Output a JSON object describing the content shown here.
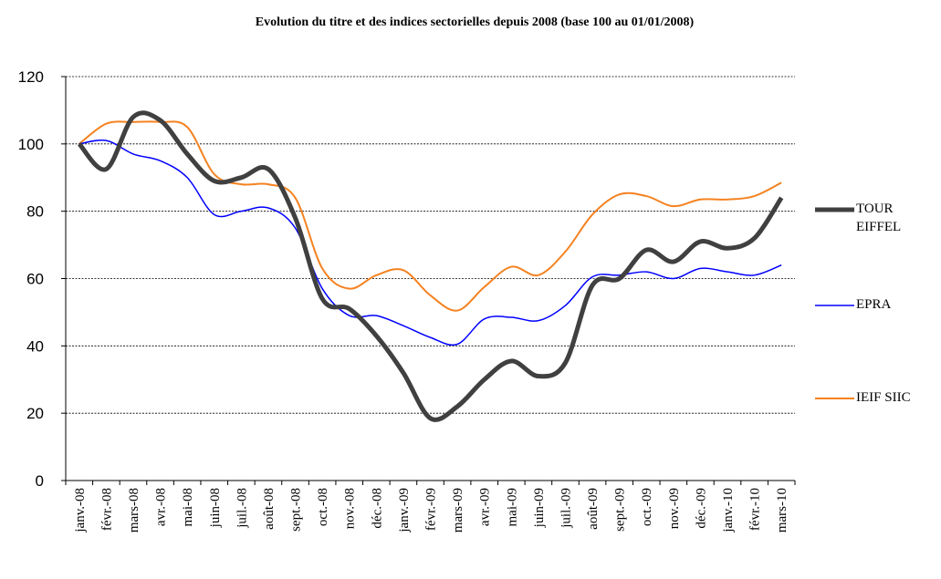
{
  "chart_data": {
    "type": "line",
    "title": "Evolution du titre et des indices sectorielles depuis 2008 (base 100 au 01/01/2008)",
    "categories": [
      "janv.-08",
      "févr.-08",
      "mars-08",
      "avr.-08",
      "mai-08",
      "juin-08",
      "juil.-08",
      "août-08",
      "sept.-08",
      "oct.-08",
      "nov.-08",
      "déc.-08",
      "janv.-09",
      "févr.-09",
      "mars-09",
      "avr.-09",
      "mai-09",
      "juin-09",
      "juil.-09",
      "août-09",
      "sept.-09",
      "oct.-09",
      "nov.-09",
      "déc.-09",
      "janv.-10",
      "févr.-10",
      "mars-10"
    ],
    "series": [
      {
        "name": "TOUR EIFFEL",
        "color": "#404040",
        "values": [
          100,
          92.5,
          108,
          107,
          97,
          89,
          90,
          92.5,
          78,
          54,
          51,
          43,
          32,
          18.5,
          22,
          30,
          35.5,
          31,
          35,
          58,
          60,
          68.5,
          65,
          71,
          69,
          72,
          84
        ]
      },
      {
        "name": "EPRA",
        "color": "#0000ff",
        "values": [
          100,
          101,
          97,
          95,
          90,
          79,
          80,
          81,
          75,
          57,
          49,
          49,
          46,
          42.5,
          40.5,
          48,
          48.5,
          47.5,
          52,
          60.5,
          61,
          62,
          60,
          63,
          62,
          61,
          64
        ]
      },
      {
        "name": "IEIF SIIC",
        "color": "#f58220",
        "values": [
          100,
          106,
          106.5,
          106.5,
          105,
          91,
          88,
          88,
          84,
          63,
          57,
          61,
          62.5,
          55,
          50.5,
          57.5,
          63.5,
          61,
          68,
          79,
          85,
          84.5,
          81.5,
          83.5,
          83.5,
          84.5,
          88.5
        ]
      }
    ],
    "ylim": [
      0,
      120
    ],
    "yticks": [
      0,
      20,
      40,
      60,
      80,
      100,
      120
    ],
    "grid": true,
    "legend": "right"
  }
}
